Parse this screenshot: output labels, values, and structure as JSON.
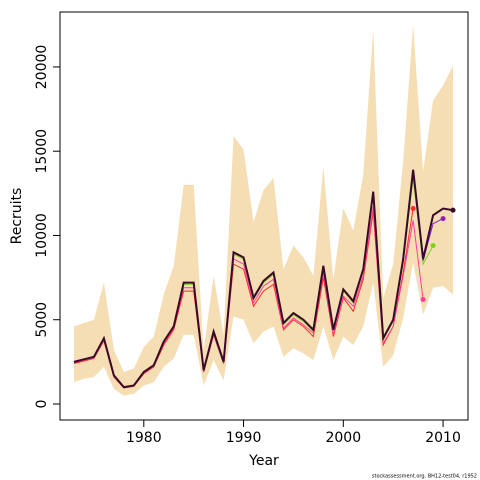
{
  "chart_data": {
    "type": "line",
    "xlabel": "Year",
    "ylabel": "Recruits",
    "note": "stockassessment.org, BH12-test04, r1952",
    "x": [
      1973,
      1974,
      1975,
      1976,
      1977,
      1978,
      1979,
      1980,
      1981,
      1982,
      1983,
      1984,
      1985,
      1986,
      1987,
      1988,
      1989,
      1990,
      1991,
      1992,
      1993,
      1994,
      1995,
      1996,
      1997,
      1998,
      1999,
      2000,
      2001,
      2002,
      2003,
      2004,
      2005,
      2006,
      2007,
      2008,
      2009,
      2010,
      2011
    ],
    "xlim": [
      1971.6,
      2012.5
    ],
    "xticks": [
      1980,
      1990,
      2000,
      2010
    ],
    "ylim": [
      -950,
      23260
    ],
    "yticks": [
      0,
      5000,
      10000,
      15000,
      20000
    ],
    "band": {
      "color": "#f5deb3",
      "upper": [
        4600,
        4800,
        5000,
        7200,
        3200,
        1900,
        2100,
        3400,
        4000,
        6500,
        8200,
        13000,
        13000,
        3200,
        7600,
        4100,
        15900,
        15100,
        10800,
        12700,
        13400,
        8000,
        9400,
        8700,
        7600,
        14100,
        7400,
        11600,
        10300,
        13600,
        22200,
        6300,
        8300,
        14400,
        22500,
        13800,
        18000,
        18900,
        20100
      ],
      "lower": [
        1300,
        1500,
        1600,
        2200,
        900,
        500,
        600,
        1100,
        1300,
        2200,
        2700,
        4100,
        4100,
        1100,
        2600,
        1400,
        5200,
        5000,
        3600,
        4300,
        4600,
        2800,
        3300,
        3000,
        2600,
        4600,
        2600,
        4000,
        3500,
        4600,
        7200,
        2200,
        2900,
        5100,
        8400,
        5300,
        6900,
        7000,
        6500
      ]
    },
    "series": [
      {
        "color": "#ff2a2a",
        "values": [
          2400,
          2550,
          2700,
          3750,
          1600,
          950,
          1050,
          1800,
          2200,
          3500,
          4400,
          6700,
          6700,
          1900,
          4100,
          2400,
          8300,
          8000,
          5800,
          6700,
          7100,
          4400,
          5000,
          4600,
          4000,
          7500,
          4000,
          6300,
          5500,
          7400,
          11400,
          3500,
          4600,
          7800,
          11600,
          null,
          null,
          null,
          null
        ]
      },
      {
        "color": "#ff3fa0",
        "values": [
          2450,
          2600,
          2750,
          3800,
          1650,
          980,
          1080,
          1850,
          2250,
          3600,
          4500,
          6900,
          6900,
          1950,
          4200,
          2450,
          8600,
          8300,
          6000,
          7000,
          7400,
          4500,
          5100,
          4700,
          4200,
          7800,
          4100,
          6400,
          5800,
          7600,
          11700,
          3600,
          4600,
          7600,
          10900,
          6200,
          null,
          null,
          null
        ]
      },
      {
        "color": "#7ed321",
        "values": [
          2500,
          2650,
          2800,
          3900,
          1700,
          1000,
          1100,
          1900,
          2300,
          3700,
          4600,
          7100,
          7100,
          2000,
          4300,
          2500,
          8900,
          8600,
          6200,
          7200,
          7700,
          4700,
          5300,
          4900,
          4300,
          8100,
          4300,
          6700,
          6000,
          7900,
          12500,
          3800,
          4900,
          8400,
          13400,
          8300,
          9400,
          null,
          null
        ]
      },
      {
        "color": "#8b1fc0",
        "values": [
          2500,
          2650,
          2800,
          3900,
          1700,
          1000,
          1100,
          1900,
          2300,
          3700,
          4600,
          7200,
          7200,
          2000,
          4300,
          2500,
          9000,
          8700,
          6300,
          7300,
          7800,
          4800,
          5400,
          5000,
          4400,
          8200,
          4400,
          6800,
          6100,
          8000,
          12600,
          3900,
          5000,
          8500,
          13700,
          8500,
          10700,
          11000,
          null
        ]
      },
      {
        "color": "#3a0a2a",
        "values": [
          2500,
          2650,
          2800,
          3900,
          1700,
          1000,
          1100,
          1900,
          2300,
          3700,
          4600,
          7200,
          7200,
          2000,
          4300,
          2500,
          9000,
          8700,
          6300,
          7300,
          7800,
          4800,
          5400,
          5000,
          4400,
          8200,
          4400,
          6800,
          6100,
          8000,
          12600,
          3900,
          5000,
          8600,
          13900,
          8600,
          11200,
          11600,
          11500
        ]
      }
    ]
  }
}
